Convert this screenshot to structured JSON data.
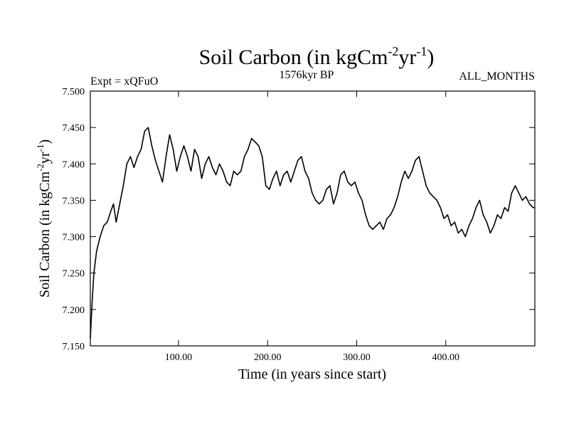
{
  "chart_data": {
    "type": "line",
    "title": "Soil Carbon (in kgCm-2yr-1)",
    "title_parts": {
      "base": "Soil Carbon (in kgCm",
      "sup1": "-2",
      "mid": "yr",
      "sup2": "-1",
      "end": ")"
    },
    "subtitle_left": "Expt = xQFuO",
    "subtitle_center": "1576kyr BP",
    "subtitle_right": "ALL_MONTHS",
    "xlabel": "Time (in years since start)",
    "ylabel": "Soil Carbon (in kgCm-2yr-1)",
    "ylabel_parts": {
      "base": "Soil Carbon (in kgCm",
      "sup1": "-2",
      "mid": "yr",
      "sup2": "-1",
      "end": ")"
    },
    "xlim": [
      1,
      500
    ],
    "ylim": [
      7.15,
      7.5
    ],
    "xticks": [
      100,
      200,
      300,
      400
    ],
    "xtick_labels": [
      "100.00",
      "200.00",
      "300.00",
      "400.00"
    ],
    "yticks": [
      7.15,
      7.2,
      7.25,
      7.3,
      7.35,
      7.4,
      7.45,
      7.5
    ],
    "ytick_labels": [
      "7.150",
      "7.200",
      "7.250",
      "7.300",
      "7.350",
      "7.400",
      "7.450",
      "7.500"
    ],
    "series": [
      {
        "name": "Soil Carbon",
        "x": [
          1,
          3,
          5,
          8,
          12,
          16,
          20,
          24,
          27,
          30,
          34,
          38,
          42,
          46,
          50,
          54,
          58,
          62,
          66,
          70,
          74,
          78,
          82,
          86,
          90,
          94,
          98,
          102,
          106,
          110,
          114,
          118,
          122,
          126,
          130,
          134,
          138,
          142,
          146,
          150,
          154,
          158,
          162,
          166,
          170,
          174,
          178,
          182,
          186,
          190,
          194,
          198,
          202,
          206,
          210,
          214,
          218,
          222,
          226,
          230,
          234,
          238,
          242,
          246,
          250,
          254,
          258,
          262,
          266,
          270,
          274,
          278,
          282,
          286,
          290,
          294,
          298,
          302,
          306,
          310,
          314,
          318,
          322,
          326,
          330,
          334,
          338,
          342,
          346,
          350,
          354,
          358,
          362,
          366,
          370,
          374,
          378,
          382,
          386,
          390,
          394,
          398,
          402,
          406,
          410,
          414,
          418,
          422,
          426,
          430,
          434,
          438,
          442,
          446,
          450,
          454,
          458,
          462,
          466,
          470,
          474,
          478,
          482,
          486,
          490,
          494,
          498,
          500
        ],
        "values": [
          7.16,
          7.21,
          7.25,
          7.28,
          7.3,
          7.315,
          7.32,
          7.335,
          7.345,
          7.32,
          7.345,
          7.37,
          7.4,
          7.41,
          7.395,
          7.41,
          7.42,
          7.445,
          7.45,
          7.425,
          7.405,
          7.39,
          7.375,
          7.41,
          7.44,
          7.42,
          7.39,
          7.41,
          7.425,
          7.41,
          7.39,
          7.42,
          7.41,
          7.38,
          7.4,
          7.41,
          7.395,
          7.385,
          7.4,
          7.39,
          7.375,
          7.37,
          7.39,
          7.385,
          7.39,
          7.41,
          7.42,
          7.435,
          7.43,
          7.425,
          7.41,
          7.37,
          7.365,
          7.38,
          7.39,
          7.37,
          7.385,
          7.39,
          7.375,
          7.39,
          7.405,
          7.41,
          7.39,
          7.38,
          7.36,
          7.35,
          7.345,
          7.35,
          7.365,
          7.37,
          7.345,
          7.36,
          7.385,
          7.39,
          7.375,
          7.37,
          7.375,
          7.36,
          7.35,
          7.33,
          7.315,
          7.31,
          7.315,
          7.32,
          7.31,
          7.325,
          7.33,
          7.34,
          7.355,
          7.375,
          7.39,
          7.38,
          7.39,
          7.405,
          7.41,
          7.39,
          7.37,
          7.36,
          7.355,
          7.35,
          7.34,
          7.325,
          7.33,
          7.315,
          7.32,
          7.305,
          7.31,
          7.3,
          7.315,
          7.325,
          7.34,
          7.35,
          7.33,
          7.32,
          7.305,
          7.315,
          7.33,
          7.325,
          7.34,
          7.335,
          7.36,
          7.37,
          7.36,
          7.35,
          7.355,
          7.345,
          7.34,
          7.34
        ]
      }
    ]
  }
}
